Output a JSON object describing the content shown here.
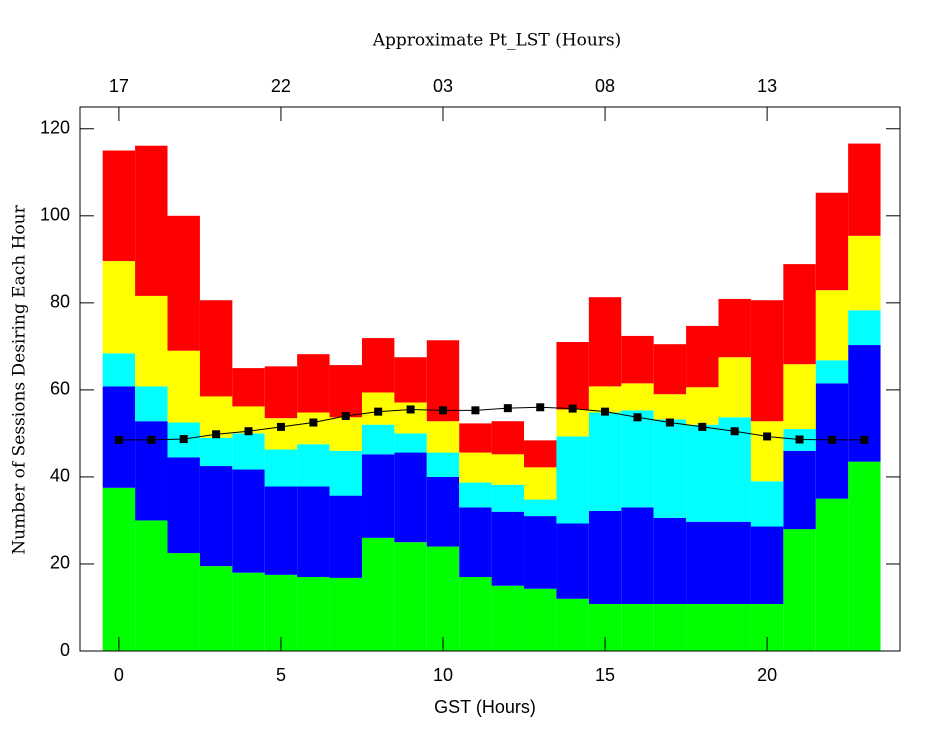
{
  "chart_data": {
    "type": "bar",
    "stacked": true,
    "x2label": "Approximate Pt_LST (Hours)",
    "xlabel": "GST (Hours)",
    "ylabel": "Number of Sessions Desiring Each Hour",
    "x": [
      0,
      1,
      2,
      3,
      4,
      5,
      6,
      7,
      8,
      9,
      10,
      11,
      12,
      13,
      14,
      15,
      16,
      17,
      18,
      19,
      20,
      21,
      22,
      23
    ],
    "series": [
      {
        "color": "#00ff00",
        "values": [
          37.5,
          30,
          22.5,
          19.5,
          18,
          17.5,
          17,
          16.8,
          26,
          25,
          24,
          17,
          15,
          14.3,
          12,
          10.8,
          10.8,
          10.8,
          10.8,
          10.8,
          10.8,
          28,
          35,
          43.5
        ]
      },
      {
        "color": "#0000ff",
        "values": [
          23.3,
          22.8,
          22,
          23,
          23.7,
          20.3,
          20.8,
          18.9,
          19.2,
          20.6,
          16,
          16,
          17,
          16.7,
          17.3,
          21.4,
          22.2,
          19.8,
          18.9,
          18.9,
          17.8,
          18,
          26.5,
          26.8
        ]
      },
      {
        "color": "#00ffff",
        "values": [
          7.6,
          8,
          8,
          6.5,
          8.3,
          8.5,
          9.7,
          10.3,
          6.8,
          4.4,
          5.6,
          5.7,
          6.2,
          3.8,
          20,
          22.6,
          22.3,
          22.6,
          22.3,
          24,
          10.4,
          5,
          5.3,
          8
        ]
      },
      {
        "color": "#ffff00",
        "values": [
          21.2,
          20.8,
          16.5,
          9.5,
          6.2,
          7.2,
          7.3,
          7.7,
          7.4,
          7.1,
          7.2,
          6.9,
          7,
          7.4,
          6.2,
          6,
          6.2,
          5.8,
          8.6,
          13.8,
          13.8,
          14.9,
          16.1,
          17.1
        ]
      },
      {
        "color": "#ff0000",
        "values": [
          25.4,
          34.5,
          31,
          22.1,
          8.8,
          11.9,
          13.4,
          12,
          12.5,
          10.4,
          18.6,
          6.7,
          7.6,
          6.2,
          15.5,
          20.5,
          10.9,
          11.5,
          14.1,
          13.4,
          27.8,
          23,
          22.4,
          21.2
        ]
      },
      {
        "type": "line",
        "color": "#000000",
        "values": [
          48.5,
          48.5,
          48.7,
          49.8,
          50.5,
          51.5,
          52.5,
          54,
          55,
          55.5,
          55.3,
          55.3,
          55.8,
          56,
          55.7,
          55,
          53.7,
          52.5,
          51.5,
          50.5,
          49.3,
          48.6,
          48.5,
          48.5
        ]
      }
    ],
    "xlim": [
      -1.2,
      24.1
    ],
    "xticks": [
      0,
      5,
      10,
      15,
      20
    ],
    "x2lim": [
      15.8,
      41.1
    ],
    "x2ticks": [
      17,
      22,
      {
        "value": 27,
        "label": "03"
      },
      {
        "value": 32,
        "label": "08"
      },
      {
        "value": 37,
        "label": "13"
      }
    ],
    "ylim": [
      0,
      125
    ],
    "yticks": [
      0,
      20,
      40,
      60,
      80,
      100,
      120
    ]
  }
}
